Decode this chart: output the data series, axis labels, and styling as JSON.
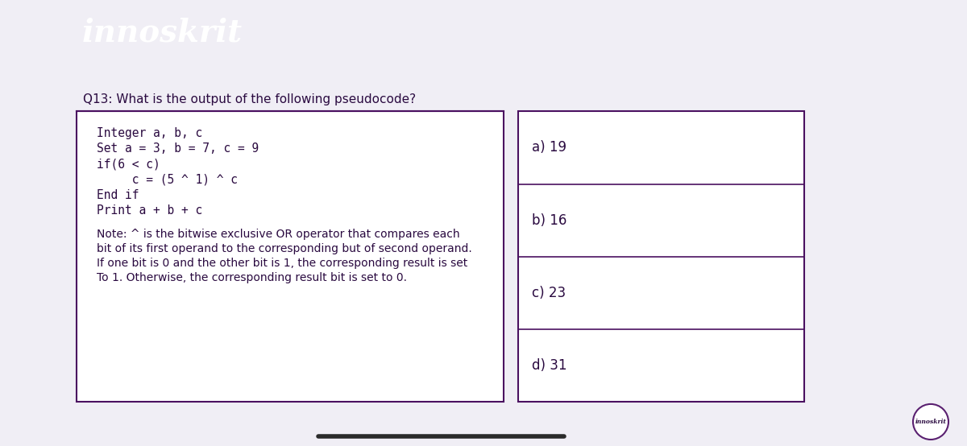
{
  "header_bg_color": "#4a1060",
  "header_text": "innoskrit",
  "header_text_color": "#ffffff",
  "body_bg_color": "#f0eef5",
  "card_bg_color": "#f0eef5",
  "card_border_color": "#5a2070",
  "question_border_color": "#4a1060",
  "question_text": "Q13: What is the output of the following pseudocode?",
  "code_lines": [
    "Integer a, b, c",
    "Set a = 3, b = 7, c = 9",
    "if(6 < c)",
    "     c = (5 ^ 1) ^ c",
    "End if",
    "Print a + b + c"
  ],
  "note_lines": [
    "Note: ^ is the bitwise exclusive OR operator that compares each",
    "bit of its first operand to the corresponding but of second operand.",
    "If one bit is 0 and the other bit is 1, the corresponding result is set",
    "To 1. Otherwise, the corresponding result bit is set to 0."
  ],
  "options": [
    "a) 19",
    "b) 16",
    "c) 23",
    "d) 31"
  ],
  "text_color": "#2a0a40",
  "footer_bar_color": "#2a2a2a",
  "logo_text": "innoskrit"
}
